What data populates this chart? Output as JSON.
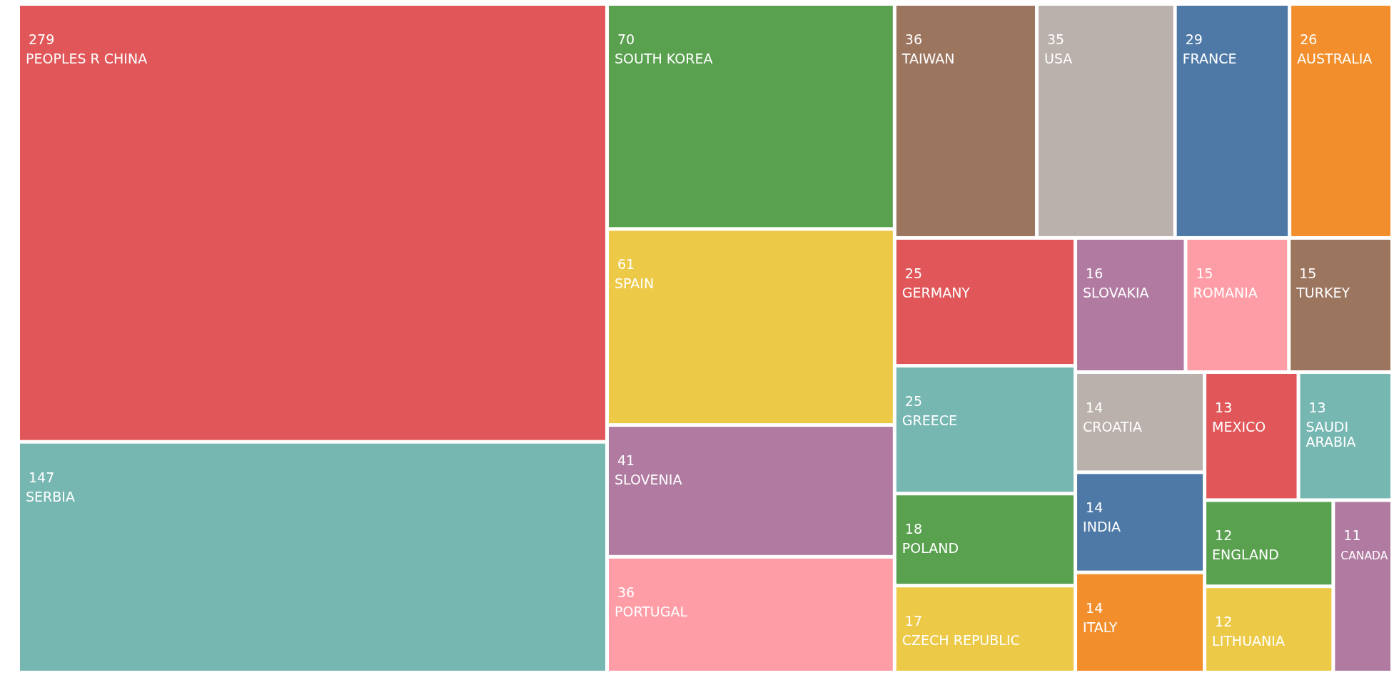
{
  "chart_data": {
    "type": "other",
    "categories": [
      "PEOPLES R CHINA",
      "SERBIA",
      "SOUTH KOREA",
      "SPAIN",
      "SLOVENIA",
      "PORTUGAL",
      "TAIWAN",
      "USA",
      "FRANCE",
      "AUSTRALIA",
      "GERMANY",
      "GREECE",
      "POLAND",
      "CZECH REPUBLIC",
      "SLOVAKIA",
      "ROMANIA",
      "TURKEY",
      "CROATIA",
      "INDIA",
      "ITALY",
      "MEXICO",
      "SAUDI ARABIA",
      "ENGLAND",
      "LITHUANIA",
      "CANADA"
    ],
    "values": [
      279,
      147,
      70,
      61,
      41,
      36,
      36,
      35,
      29,
      26,
      25,
      25,
      18,
      17,
      16,
      15,
      15,
      14,
      14,
      14,
      13,
      13,
      12,
      12,
      11
    ],
    "colors": [
      "#e15759",
      "#76b7b2",
      "#59a14f",
      "#edc948",
      "#b07aa1",
      "#ff9da7",
      "#9c755f",
      "#bab0ac",
      "#4e79a7",
      "#f28e2b",
      "#e15759",
      "#76b7b2",
      "#59a14f",
      "#edc948",
      "#b07aa1",
      "#ff9da7",
      "#9c755f",
      "#bab0ac",
      "#4e79a7",
      "#f28e2b",
      "#e15759",
      "#76b7b2",
      "#59a14f",
      "#edc948",
      "#b07aa1"
    ],
    "data_labels": true
  }
}
